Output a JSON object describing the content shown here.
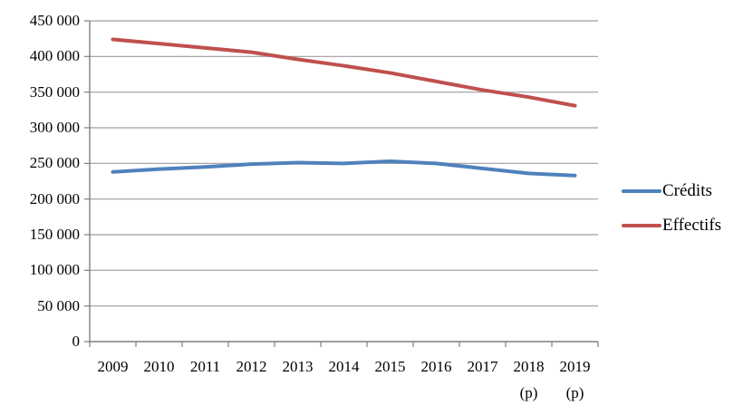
{
  "chart_data": {
    "type": "line",
    "title": "",
    "xlabel": "",
    "ylabel": "",
    "categories": [
      "2009",
      "2010",
      "2011",
      "2012",
      "2013",
      "2014",
      "2015",
      "2016",
      "2017",
      "2018",
      "2019"
    ],
    "category_sublabels": [
      "",
      "",
      "",
      "",
      "",
      "",
      "",
      "",
      "",
      "(p)",
      "(p)"
    ],
    "series": [
      {
        "name": "Crédits",
        "color": "#4F81BD",
        "values": [
          238000,
          242000,
          245000,
          249000,
          251000,
          250000,
          253000,
          250000,
          243000,
          236000,
          233000
        ]
      },
      {
        "name": "Effectifs",
        "color": "#C0504D",
        "values": [
          424000,
          418000,
          412000,
          406000,
          396000,
          387000,
          377000,
          365000,
          353000,
          343000,
          331000
        ]
      }
    ],
    "y_axis": {
      "min": 0,
      "max": 450000,
      "step": 50000,
      "tick_labels": [
        "0",
        "50 000",
        "100 000",
        "150 000",
        "200 000",
        "250 000",
        "300 000",
        "350 000",
        "400 000",
        "450 000"
      ]
    },
    "grid": true,
    "legend_position": "right",
    "colors": {
      "gridline": "#9D9D9D",
      "axis": "#7F7F7F",
      "text": "#000000",
      "background": "#FFFFFF"
    }
  },
  "legend": {
    "items": [
      {
        "label": "Crédits"
      },
      {
        "label": "Effectifs"
      }
    ]
  }
}
